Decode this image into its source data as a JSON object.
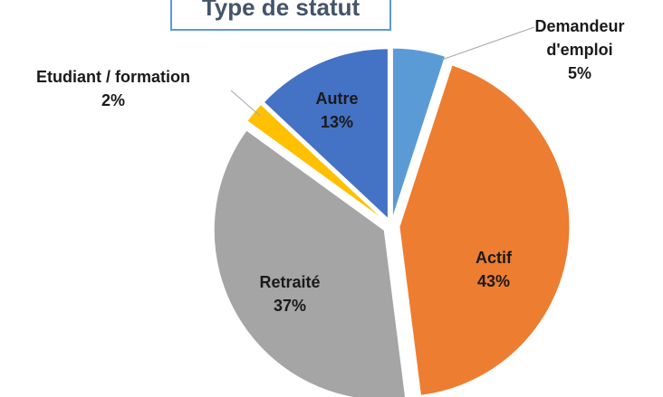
{
  "chart_data": {
    "type": "pie",
    "title": "Type de statut",
    "categories": [
      "Demandeur d'emploi",
      "Actif",
      "Retraité",
      "Etudiant / formation",
      "Autre"
    ],
    "values": [
      5,
      43,
      37,
      2,
      13
    ],
    "value_labels": [
      "5%",
      "43%",
      "37%",
      "2%",
      "13%"
    ],
    "colors": [
      "#5b9bd5",
      "#ed7d31",
      "#a5a5a5",
      "#ffc000",
      "#4472c4"
    ]
  }
}
